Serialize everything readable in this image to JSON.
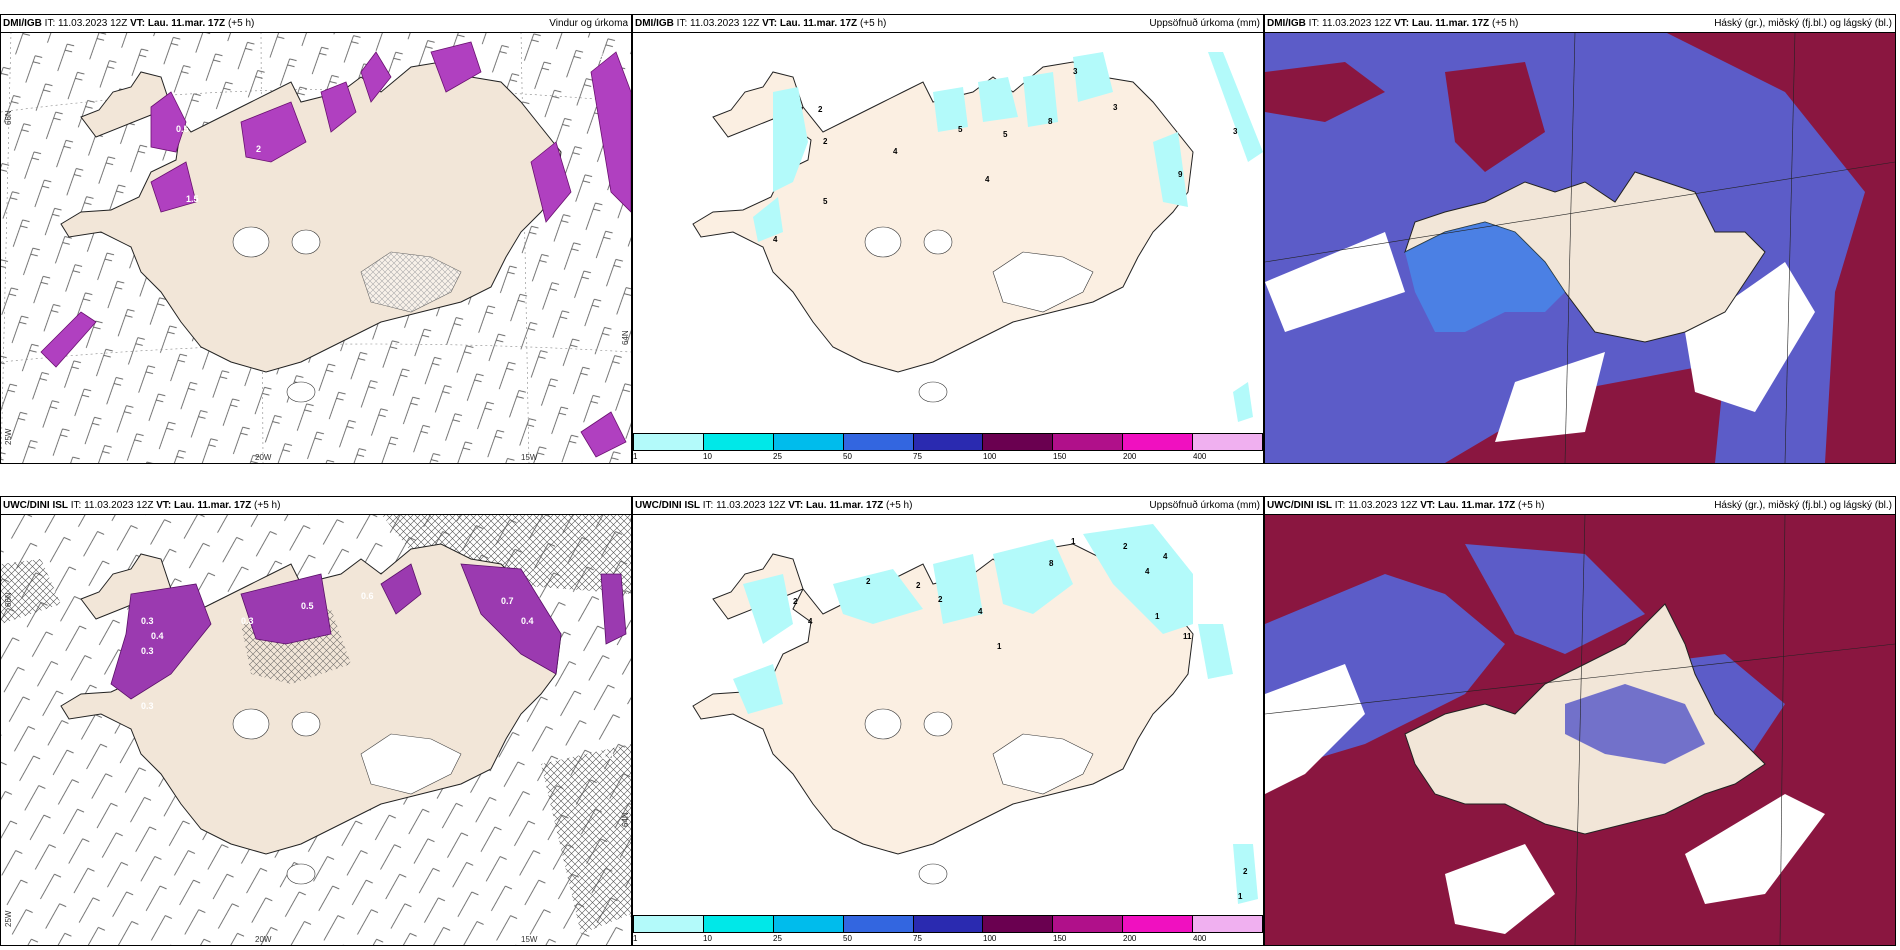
{
  "panels": [
    {
      "id": "tl",
      "model": "DMI/IGB",
      "it": "IT: 11.03.2023 12Z",
      "vt": "VT: Lau. 11.mar. 17Z",
      "lead": "(+5 h)",
      "right": "Vindur og úrkoma"
    },
    {
      "id": "tm",
      "model": "DMI/IGB",
      "it": "IT: 11.03.2023 12Z",
      "vt": "VT: Lau. 11.mar. 17Z",
      "lead": "(+5 h)",
      "right": "Uppsöfnuð úrkoma (mm)"
    },
    {
      "id": "tr",
      "model": "DMI/IGB",
      "it": "IT: 11.03.2023 12Z",
      "vt": "VT: Lau. 11.mar. 17Z",
      "lead": "(+5 h)",
      "right": "Háský (gr.), miðský (fj.bl.) og lágský (bl.)"
    },
    {
      "id": "bl",
      "model": "UWC/DINI ISL",
      "it": "IT: 11.03.2023 12Z",
      "vt": "VT: Lau. 11.mar. 17Z",
      "lead": "(+5 h)",
      "right": ""
    },
    {
      "id": "bm",
      "model": "UWC/DINI ISL",
      "it": "IT: 11.03.2023 12Z",
      "vt": "VT: Lau. 11.mar. 17Z",
      "lead": "(+5 h)",
      "right": "Uppsöfnuð úrkoma (mm)"
    },
    {
      "id": "br",
      "model": "UWC/DINI ISL",
      "it": "IT: 11.03.2023 12Z",
      "vt": "VT: Lau. 11.mar. 17Z",
      "lead": "(+5 h)",
      "right": "Háský (gr.), miðský (fj.bl.) og lágský (bl.)"
    }
  ],
  "axis_labels": {
    "lat66": "66N",
    "lat64": "64N",
    "lon25": "25W",
    "lon20": "20W",
    "lon15": "15W"
  },
  "colorbar": {
    "ticks": [
      "1",
      "10",
      "25",
      "50",
      "75",
      "100",
      "150",
      "200",
      "400"
    ],
    "colors": [
      "#b3fafa",
      "#00e8e8",
      "#00bcec",
      "#3366e0",
      "#2a2ab0",
      "#6a0050",
      "#b0108a",
      "#f010c0",
      "#f0b0f0"
    ]
  },
  "precip_labels_top": [
    "3",
    "3",
    "8",
    "5",
    "5",
    "4",
    "4",
    "2",
    "5",
    "4",
    "9",
    "3",
    "2"
  ],
  "precip_labels_bottom": [
    "1",
    "2",
    "8",
    "4",
    "2",
    "2",
    "2",
    "4",
    "1",
    "11",
    "4",
    "2",
    "4",
    "1",
    "2",
    "1"
  ],
  "wind_labels_top": [
    "0.5",
    "1.5",
    "2",
    "0.5"
  ],
  "wind_labels_bottom": [
    "0.3",
    "0.4",
    "0.3",
    "0.5",
    "0.6",
    "0.7",
    "0.4",
    "0.3",
    "0.9",
    "0.3"
  ],
  "colors": {
    "land": "#f2e6d8",
    "land_precip": "#fbefe2",
    "sea_cloud_low": "#5c5cc8",
    "cloud_high": "#8a1640",
    "cloud_light": "#3aa3ff"
  }
}
